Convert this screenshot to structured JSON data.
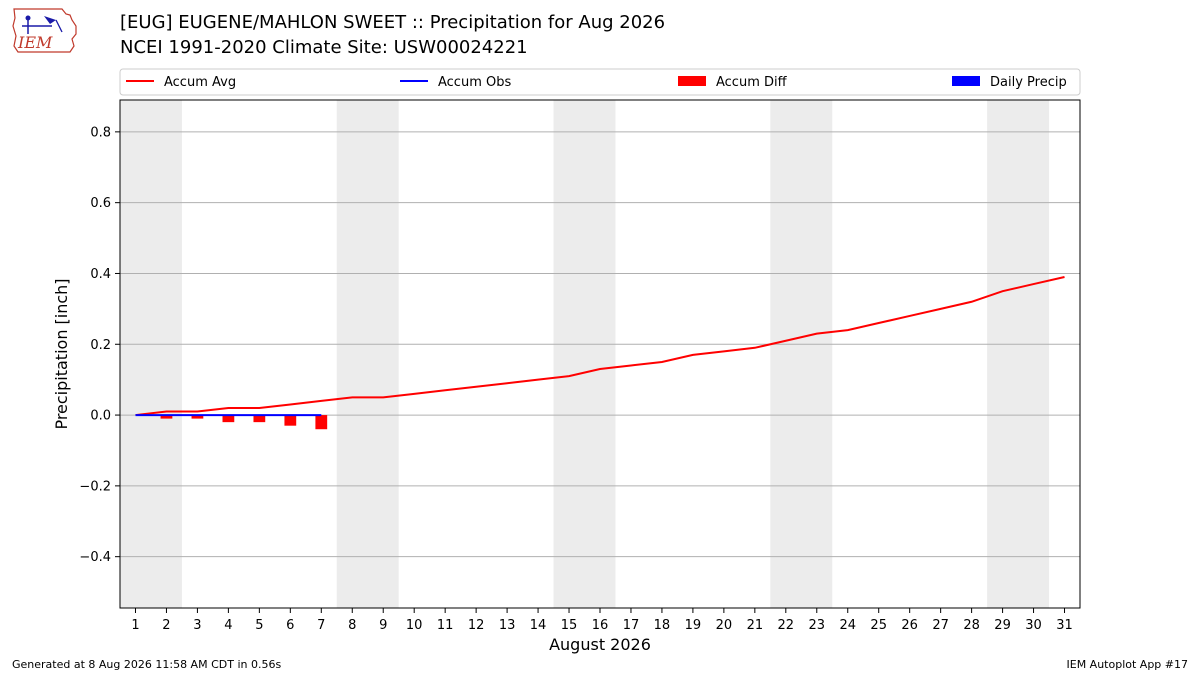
{
  "header": {
    "title_line1": "[EUG] EUGENE/MAHLON SWEET :: Precipitation for Aug 2026",
    "title_line2": "NCEI 1991-2020 Climate Site: USW00024221",
    "logo_text": "IEM"
  },
  "footer": {
    "generated": "Generated at 8 Aug 2026 11:58 AM CDT in 0.56s",
    "app": "IEM Autoplot App #17"
  },
  "chart_data": {
    "type": "line",
    "xlabel": "August 2026",
    "ylabel": "Precipitation [inch]",
    "ylim": [
      -0.545,
      0.89
    ],
    "yticks": [
      -0.4,
      -0.2,
      0.0,
      0.2,
      0.4,
      0.6,
      0.8
    ],
    "ytick_labels": [
      "−0.4",
      "−0.2",
      "0.0",
      "0.2",
      "0.4",
      "0.6",
      "0.8"
    ],
    "x": [
      1,
      2,
      3,
      4,
      5,
      6,
      7,
      8,
      9,
      10,
      11,
      12,
      13,
      14,
      15,
      16,
      17,
      18,
      19,
      20,
      21,
      22,
      23,
      24,
      25,
      26,
      27,
      28,
      29,
      30,
      31
    ],
    "x_tick_labels": [
      "1",
      "2",
      "3",
      "4",
      "5",
      "6",
      "7",
      "8",
      "9",
      "10",
      "11",
      "12",
      "13",
      "14",
      "15",
      "16",
      "17",
      "18",
      "19",
      "20",
      "21",
      "22",
      "23",
      "24",
      "25",
      "26",
      "27",
      "28",
      "29",
      "30",
      "31"
    ],
    "xlim": [
      0.5,
      31.5
    ],
    "grid": "horizontal",
    "weekend_shading": [
      [
        0.5,
        2.5
      ],
      [
        7.5,
        9.5
      ],
      [
        14.5,
        16.5
      ],
      [
        21.5,
        23.5
      ],
      [
        28.5,
        30.5
      ]
    ],
    "legend": {
      "placement": "top",
      "entries": [
        {
          "label": "Accum Avg",
          "kind": "line",
          "color": "#ff0000"
        },
        {
          "label": "Accum Obs",
          "kind": "line",
          "color": "#0000ff"
        },
        {
          "label": "Accum Diff",
          "kind": "bar",
          "color": "#ff0000"
        },
        {
          "label": "Daily Precip",
          "kind": "bar",
          "color": "#0000ff"
        }
      ]
    },
    "series": [
      {
        "name": "Accum Avg",
        "color": "#ff0000",
        "values": [
          0.0,
          0.01,
          0.01,
          0.02,
          0.02,
          0.03,
          0.04,
          0.05,
          0.05,
          0.06,
          0.07,
          0.08,
          0.09,
          0.1,
          0.11,
          0.13,
          0.14,
          0.15,
          0.17,
          0.18,
          0.19,
          0.21,
          0.23,
          0.24,
          0.26,
          0.28,
          0.3,
          0.32,
          0.35,
          0.37,
          0.39
        ]
      },
      {
        "name": "Accum Obs",
        "color": "#0000ff",
        "x": [
          1,
          2,
          3,
          4,
          5,
          6,
          7
        ],
        "values": [
          0,
          0,
          0,
          0,
          0,
          0,
          0
        ]
      },
      {
        "name": "Accum Diff",
        "color": "#ff0000",
        "x": [
          1,
          2,
          3,
          4,
          5,
          6,
          7
        ],
        "values": [
          0.0,
          -0.01,
          -0.01,
          -0.02,
          -0.02,
          -0.03,
          -0.04
        ]
      },
      {
        "name": "Daily Precip",
        "color": "#0000ff",
        "x": [
          1,
          2,
          3,
          4,
          5,
          6,
          7
        ],
        "values": [
          0,
          0,
          0,
          0,
          0,
          0,
          0
        ]
      }
    ]
  }
}
